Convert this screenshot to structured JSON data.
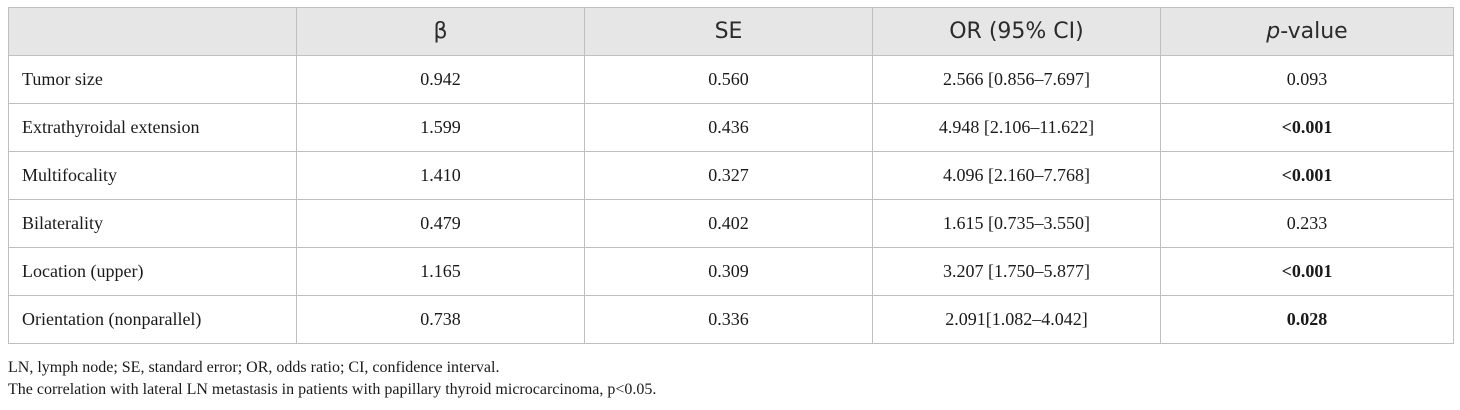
{
  "table": {
    "headers": {
      "blank": "",
      "beta": "β",
      "se": "SE",
      "or": "OR (95% CI)",
      "p_italic": "p",
      "p_rest": "-value"
    },
    "rows": [
      {
        "label": "Tumor size",
        "beta": "0.942",
        "se": "0.560",
        "or": "2.566 [0.856–7.697]",
        "p": "0.093",
        "p_bold": false
      },
      {
        "label": "Extrathyroidal extension",
        "beta": "1.599",
        "se": "0.436",
        "or": "4.948 [2.106–11.622]",
        "p": "<0.001",
        "p_bold": true
      },
      {
        "label": "Multifocality",
        "beta": "1.410",
        "se": "0.327",
        "or": "4.096 [2.160–7.768]",
        "p": "<0.001",
        "p_bold": true
      },
      {
        "label": "Bilaterality",
        "beta": "0.479",
        "se": "0.402",
        "or": "1.615 [0.735–3.550]",
        "p": "0.233",
        "p_bold": false
      },
      {
        "label": "Location (upper)",
        "beta": "1.165",
        "se": "0.309",
        "or": "3.207 [1.750–5.877]",
        "p": "<0.001",
        "p_bold": true
      },
      {
        "label": "Orientation (nonparallel)",
        "beta": "0.738",
        "se": "0.336",
        "or": "2.091[1.082–4.042]",
        "p": "0.028",
        "p_bold": true
      }
    ]
  },
  "footnotes": {
    "abbreviations": "LN, lymph node; SE, standard error; OR, odds ratio; CI, confidence interval.",
    "note": "The correlation with lateral LN metastasis in patients with papillary thyroid microcarcinoma, p<0.05."
  },
  "colors": {
    "header_bg": "#e6e6e6",
    "border": "#bfbfbf",
    "text": "#1a1a1a"
  }
}
